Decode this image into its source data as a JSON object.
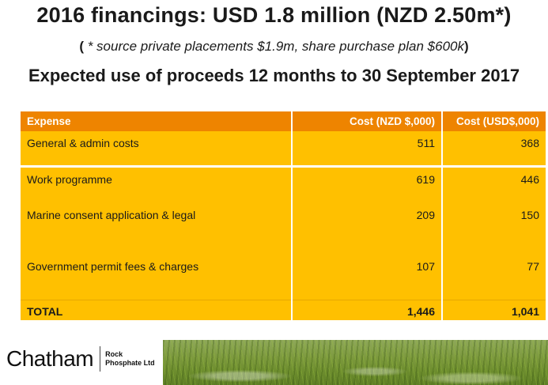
{
  "title": "2016 financings: USD 1.8 million (NZD 2.50m*)",
  "subtitle": {
    "open": "( ",
    "text": "* source private placements $1.9m, share purchase plan $600k",
    "close": ")"
  },
  "heading": "Expected use of proceeds 12 months to 30 September 2017",
  "table": {
    "headers": [
      "Expense",
      "Cost (NZD $,000)",
      "Cost (USD$,000)"
    ],
    "rows": [
      {
        "expense": "General & admin costs",
        "nzd": "511",
        "usd": "368"
      },
      {
        "expense": "Work programme",
        "nzd": "619",
        "usd": "446"
      },
      {
        "expense": "Marine consent application & legal",
        "nzd": "209",
        "usd": "150"
      },
      {
        "expense": "Government permit fees & charges",
        "nzd": "107",
        "usd": "77"
      }
    ],
    "total": {
      "expense": "TOTAL",
      "nzd": "1,446",
      "usd": "1,041"
    }
  },
  "logo": {
    "name": "Chatham",
    "sub_line1": "Rock",
    "sub_line2": "Phosphate Ltd"
  },
  "colors": {
    "header_bg": "#ee8400",
    "row_bg": "#ffc000"
  }
}
